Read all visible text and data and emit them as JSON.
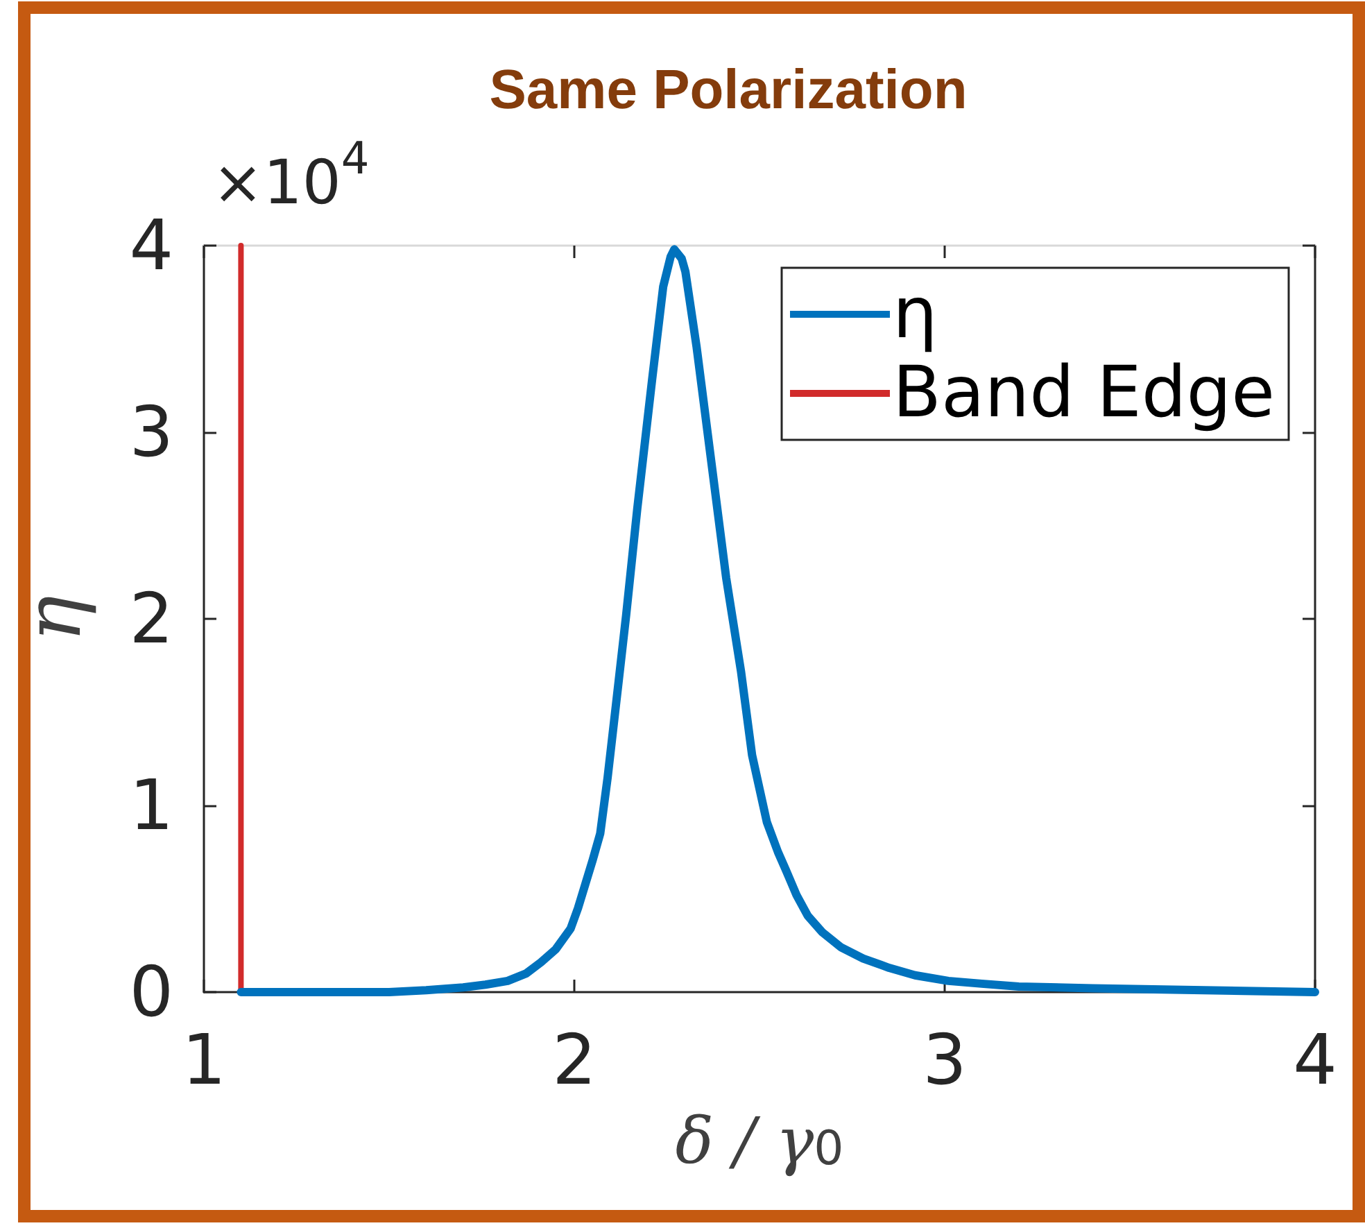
{
  "chart_data": {
    "type": "line",
    "title": "Same Polarization",
    "xlabel": "δ / γ$_{0}$",
    "ylabel": "η",
    "annotations": [
      "×10$^{4}$"
    ],
    "xlim": [
      1,
      4
    ],
    "xticks": [
      1,
      2,
      3,
      4
    ],
    "ylim": [
      0,
      4
    ],
    "yticks": [
      0,
      1,
      2,
      3,
      4
    ],
    "grid": false,
    "legend": "top right",
    "marker": "none",
    "line_style": "solid",
    "series": [
      {
        "name": "η",
        "color": "#0072bd",
        "x": [
          1.1,
          1.3,
          1.5,
          1.6,
          1.7,
          1.76,
          1.82,
          1.87,
          1.91,
          1.95,
          1.99,
          2.01,
          2.03,
          2.05,
          2.07,
          2.09,
          2.12,
          2.14,
          2.17,
          2.21,
          2.24,
          2.26,
          2.27,
          2.29,
          2.3,
          2.33,
          2.37,
          2.41,
          2.43,
          2.45,
          2.48,
          2.52,
          2.55,
          2.57,
          2.6,
          2.63,
          2.67,
          2.72,
          2.78,
          2.85,
          2.92,
          3.01,
          3.1,
          3.2,
          3.4,
          3.7,
          4.0
        ],
        "values": [
          0,
          0,
          0,
          0.01,
          0.025,
          0.04,
          0.06,
          0.1,
          0.16,
          0.23,
          0.34,
          0.45,
          0.58,
          0.71,
          0.85,
          1.15,
          1.67,
          2.02,
          2.59,
          3.28,
          3.78,
          3.94,
          3.98,
          3.93,
          3.86,
          3.46,
          2.84,
          2.22,
          1.97,
          1.72,
          1.27,
          0.91,
          0.75,
          0.66,
          0.52,
          0.41,
          0.32,
          0.24,
          0.18,
          0.13,
          0.09,
          0.06,
          0.045,
          0.03,
          0.02,
          0.01,
          0
        ]
      },
      {
        "name": "Band Edge",
        "color": "#d12b2b",
        "x": [
          1.1,
          1.1
        ],
        "values": [
          0,
          4
        ]
      }
    ]
  }
}
